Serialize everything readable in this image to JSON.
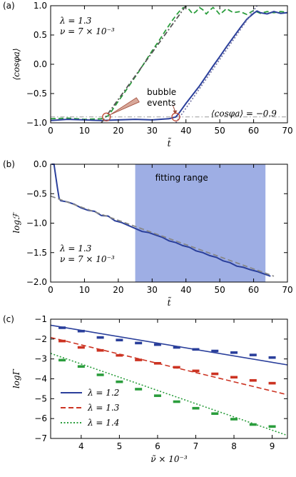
{
  "chart_data": [
    {
      "type": "line",
      "panel_label": "(a)",
      "xlabel": "t̃",
      "ylabel": "⟨cosφa⟩",
      "xlim": [
        0,
        70
      ],
      "ylim": [
        -1.0,
        1.0
      ],
      "xticks": [
        0,
        10,
        20,
        30,
        40,
        50,
        60,
        70
      ],
      "yticks": [
        -1.0,
        -0.5,
        0.0,
        0.5,
        1.0
      ],
      "ytick_labels": [
        "−1.0",
        "−0.5",
        "0.0",
        "0.5",
        "1.0"
      ],
      "params": [
        "λ = 1.3",
        "ν = 7 × 10⁻³"
      ],
      "annotations": {
        "bubble": "bubble",
        "events": "events",
        "threshold": "⟨cosφa⟩ = −0.9"
      },
      "threshold": -0.9,
      "series": [
        {
          "color": "#2a9d3c",
          "style": "dashed",
          "x": [
            0,
            5,
            10,
            15,
            17,
            18,
            20,
            22,
            24,
            26,
            28,
            30,
            32,
            34,
            36,
            37,
            38,
            39,
            40,
            41,
            42,
            43,
            44,
            45,
            46,
            47,
            48,
            49,
            50,
            52,
            54,
            56,
            58,
            60,
            62,
            64,
            66,
            68,
            70
          ],
          "y": [
            -0.93,
            -0.92,
            -0.94,
            -0.93,
            -0.88,
            -0.8,
            -0.63,
            -0.47,
            -0.3,
            -0.13,
            0.05,
            0.23,
            0.4,
            0.58,
            0.75,
            0.83,
            0.9,
            0.96,
            0.98,
            0.93,
            0.86,
            0.9,
            0.97,
            0.93,
            0.86,
            0.92,
            0.97,
            0.92,
            0.85,
            0.95,
            0.88,
            0.9,
            0.85,
            0.92,
            0.87,
            0.9,
            0.88,
            0.9,
            0.89
          ]
        },
        {
          "color": "#2a3f9b",
          "style": "solid",
          "x": [
            0,
            5,
            10,
            15,
            20,
            25,
            30,
            35,
            37,
            38,
            40,
            42,
            44,
            46,
            48,
            50,
            52,
            54,
            56,
            58,
            60,
            61,
            62,
            64,
            66,
            68,
            70
          ],
          "y": [
            -0.96,
            -0.94,
            -0.95,
            -0.96,
            -0.95,
            -0.94,
            -0.95,
            -0.93,
            -0.9,
            -0.83,
            -0.67,
            -0.52,
            -0.37,
            -0.2,
            -0.03,
            0.13,
            0.3,
            0.46,
            0.62,
            0.77,
            0.87,
            0.91,
            0.88,
            0.86,
            0.9,
            0.87,
            0.88
          ]
        },
        {
          "color": "#555555",
          "style": "dashdot",
          "x": [
            15,
            40
          ],
          "y": [
            -1.0,
            1.0
          ]
        },
        {
          "color": "#7a7aa8",
          "style": "dotted",
          "x": [
            37,
            61
          ],
          "y": [
            -1.0,
            1.0
          ]
        }
      ],
      "circles": [
        {
          "x": 16.5,
          "y": -0.9
        },
        {
          "x": 37,
          "y": -0.9
        }
      ]
    },
    {
      "type": "line",
      "panel_label": "(b)",
      "xlabel": "t̃",
      "ylabel": "logℱ",
      "xlim": [
        0,
        70
      ],
      "ylim": [
        -2.0,
        0.0
      ],
      "xticks": [
        0,
        10,
        20,
        30,
        40,
        50,
        60,
        70
      ],
      "yticks": [
        -2.0,
        -1.5,
        -1.0,
        -0.5,
        0.0
      ],
      "ytick_labels": [
        "−2.0",
        "−1.5",
        "−1.0",
        "−0.5",
        "0.0"
      ],
      "fitting_range": [
        25,
        63.5
      ],
      "fitting_label": "fitting range",
      "params": [
        "λ = 1.3",
        "ν = 7 × 10⁻³"
      ],
      "series": [
        {
          "color": "#2a3f9b",
          "style": "solid",
          "x": [
            0.3,
            1,
            2,
            2.5,
            3,
            5,
            7,
            9,
            11,
            13,
            15,
            17,
            19,
            21,
            23,
            25,
            27,
            29,
            31,
            33,
            35,
            37,
            39,
            41,
            43,
            45,
            47,
            49,
            51,
            53,
            55,
            57,
            59,
            61,
            63,
            65
          ],
          "y": [
            0.0,
            0.0,
            -0.4,
            -0.58,
            -0.62,
            -0.64,
            -0.68,
            -0.74,
            -0.78,
            -0.8,
            -0.87,
            -0.88,
            -0.96,
            -0.99,
            -1.04,
            -1.09,
            -1.14,
            -1.16,
            -1.2,
            -1.24,
            -1.3,
            -1.33,
            -1.38,
            -1.41,
            -1.47,
            -1.5,
            -1.55,
            -1.58,
            -1.64,
            -1.67,
            -1.73,
            -1.75,
            -1.79,
            -1.82,
            -1.86,
            -1.9
          ]
        },
        {
          "color": "#888888",
          "style": "dashed",
          "x": [
            0,
            66
          ],
          "y": [
            -0.54,
            -1.9
          ]
        }
      ]
    },
    {
      "type": "scatter",
      "panel_label": "(c)",
      "xlabel": "ν̃ × 10⁻³",
      "ylabel": "logΓ",
      "xlim": [
        3.2,
        9.4
      ],
      "ylim": [
        -7,
        -1
      ],
      "xticks": [
        4,
        5,
        6,
        7,
        8,
        9
      ],
      "yticks": [
        -7,
        -6,
        -5,
        -4,
        -3,
        -2,
        -1
      ],
      "ytick_labels": [
        "−7",
        "−6",
        "−5",
        "−4",
        "−3",
        "−2",
        "−1"
      ],
      "x": [
        3.5,
        4.0,
        4.5,
        5.0,
        5.5,
        6.0,
        6.5,
        7.0,
        7.5,
        8.0,
        8.5,
        9.0
      ],
      "series": [
        {
          "name": "λ = 1.2",
          "color": "#2a3f9b",
          "style": "solid",
          "values": [
            -1.43,
            -1.6,
            -1.92,
            -2.05,
            -2.2,
            -2.28,
            -2.42,
            -2.52,
            -2.6,
            -2.68,
            -2.8,
            -2.93
          ],
          "fit": [
            -1.3,
            -3.3
          ]
        },
        {
          "name": "λ = 1.3",
          "color": "#cc3322",
          "style": "dashed",
          "values": [
            -2.1,
            -2.42,
            -2.57,
            -2.82,
            -3.05,
            -3.22,
            -3.42,
            -3.6,
            -3.75,
            -3.92,
            -4.08,
            -4.22
          ],
          "fit": [
            -1.92,
            -4.8
          ]
        },
        {
          "name": "λ = 1.4",
          "color": "#2a9d3c",
          "style": "dotted",
          "values": [
            -3.06,
            -3.38,
            -3.8,
            -4.15,
            -4.52,
            -4.85,
            -5.15,
            -5.48,
            -5.75,
            -6.03,
            -6.3,
            -6.4
          ],
          "fit": [
            -2.72,
            -6.85
          ]
        }
      ]
    }
  ]
}
